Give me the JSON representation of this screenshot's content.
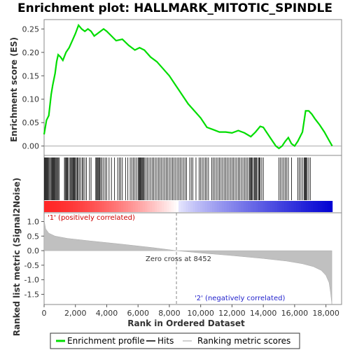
{
  "chart_data": {
    "type": "line",
    "title": "Enrichment plot: HALLMARK_MITOTIC_SPINDLE",
    "colors": {
      "enrichment": "#00dd00",
      "hits": "#000000",
      "metric": "#c0c0c0",
      "positive": "#ff0000",
      "negative": "#0000ff"
    },
    "top_panel": {
      "ylabel": "Enrichment score (ES)",
      "ylim": [
        -0.02,
        0.27
      ],
      "yticks": [
        "0.00",
        "0.05",
        "0.10",
        "0.15",
        "0.20",
        "0.25"
      ],
      "series": [
        {
          "name": "Enrichment profile",
          "x": [
            0,
            150,
            300,
            450,
            550,
            700,
            800,
            900,
            1050,
            1200,
            1400,
            1600,
            1800,
            2000,
            2200,
            2400,
            2600,
            2800,
            3000,
            3200,
            3400,
            3600,
            3800,
            4000,
            4300,
            4600,
            5000,
            5400,
            5800,
            6100,
            6400,
            6800,
            7200,
            7600,
            8000,
            8400,
            8800,
            9200,
            9600,
            10000,
            10400,
            10800,
            11200,
            11600,
            12000,
            12400,
            12800,
            13200,
            13500,
            13800,
            14000,
            14200,
            14500,
            14800,
            15000,
            15200,
            15400,
            15600,
            15800,
            16000,
            16200,
            16500,
            16700,
            16900,
            17100,
            17300,
            17600,
            17900,
            18200,
            18400
          ],
          "y": [
            0.025,
            0.055,
            0.065,
            0.11,
            0.13,
            0.155,
            0.18,
            0.195,
            0.19,
            0.183,
            0.2,
            0.21,
            0.225,
            0.24,
            0.258,
            0.25,
            0.245,
            0.25,
            0.245,
            0.235,
            0.24,
            0.245,
            0.25,
            0.245,
            0.235,
            0.225,
            0.228,
            0.215,
            0.205,
            0.21,
            0.205,
            0.19,
            0.18,
            0.165,
            0.15,
            0.13,
            0.11,
            0.09,
            0.075,
            0.06,
            0.04,
            0.035,
            0.03,
            0.03,
            0.028,
            0.033,
            0.028,
            0.02,
            0.03,
            0.042,
            0.04,
            0.03,
            0.015,
            0.0,
            -0.005,
            0.0,
            0.01,
            0.018,
            0.005,
            0.0,
            0.01,
            0.03,
            0.075,
            0.075,
            0.068,
            0.058,
            0.045,
            0.03,
            0.012,
            0.0
          ]
        }
      ]
    },
    "hits_panel": {
      "legend": "Hits",
      "hit_positions": [
        30,
        70,
        110,
        160,
        200,
        240,
        300,
        350,
        410,
        460,
        510,
        560,
        600,
        650,
        700,
        750,
        800,
        850,
        900,
        960,
        1300,
        1350,
        1400,
        1450,
        1500,
        1560,
        1650,
        1700,
        1750,
        1800,
        1850,
        1900,
        1950,
        2000,
        2060,
        2120,
        2180,
        2250,
        2350,
        2450,
        2500,
        2600,
        2700,
        2900,
        3000,
        3300,
        3350,
        3400,
        3450,
        3500,
        3560,
        3620,
        3700,
        3800,
        3900,
        4000,
        4150,
        4300,
        4500,
        4700,
        4800,
        4900,
        5000,
        5200,
        5350,
        5500,
        5600,
        5700,
        5800,
        5900,
        6000,
        6050,
        6100,
        6150,
        6200,
        6250,
        6300,
        6350,
        6400,
        6500,
        6600,
        6700,
        6800,
        6900,
        7000,
        7100,
        7200,
        7300,
        7400,
        7500,
        7600,
        7700,
        7800,
        7900,
        8000,
        8100,
        8200,
        8300,
        8400,
        8500,
        8600,
        8700,
        8800,
        8900,
        9000,
        9100,
        9300,
        9400,
        9500,
        9700,
        9900,
        10000,
        10100,
        10200,
        10300,
        10400,
        10500,
        10700,
        10800,
        10900,
        11000,
        11100,
        11200,
        11300,
        11400,
        11500,
        11600,
        11700,
        11800,
        11900,
        12000,
        12100,
        12200,
        12300,
        12400,
        12500,
        12600,
        12700,
        12800,
        12900,
        13000,
        13100,
        13150,
        13200,
        13250,
        13300,
        13400,
        13450,
        13500,
        13550,
        13600,
        13700,
        13750,
        13800,
        13900,
        14000,
        15000,
        15100,
        15200,
        15300,
        15400,
        15500,
        15600,
        15800,
        16200,
        16300,
        16400,
        16500,
        16600,
        16650,
        16700,
        16750,
        16800,
        16900,
        17000
      ]
    },
    "bottom_panel": {
      "ylabel": "Ranked list metric (Signal2Noise)",
      "xlabel": "Rank in Ordered Dataset",
      "ylim": [
        -1.85,
        1.3
      ],
      "yticks": [
        "-1.5",
        "-1.0",
        "-0.5",
        "0.0",
        "0.5",
        "1.0"
      ],
      "xlim": [
        0,
        19000
      ],
      "xticks": [
        "0",
        "2,000",
        "4,000",
        "6,000",
        "8,000",
        "10,000",
        "12,000",
        "14,000",
        "16,000",
        "18,000"
      ],
      "n_genes": 18400,
      "zero_cross": 8452,
      "zero_cross_label": "Zero cross at 8452",
      "positive_label": "'1' (positively correlated)",
      "negative_label": "'2' (negatively correlated)",
      "metric_curve": {
        "x": [
          0,
          100,
          300,
          700,
          1500,
          3000,
          5000,
          7000,
          8452,
          10000,
          12000,
          14000,
          15500,
          16500,
          17200,
          17700,
          18000,
          18200,
          18300,
          18380
        ],
        "y": [
          1.05,
          0.75,
          0.6,
          0.5,
          0.42,
          0.33,
          0.22,
          0.1,
          0.0,
          -0.08,
          -0.17,
          -0.27,
          -0.36,
          -0.45,
          -0.55,
          -0.68,
          -0.85,
          -1.1,
          -1.45,
          -1.85
        ]
      }
    },
    "legend": [
      "Enrichment profile",
      "Hits",
      "Ranking metric scores"
    ]
  }
}
